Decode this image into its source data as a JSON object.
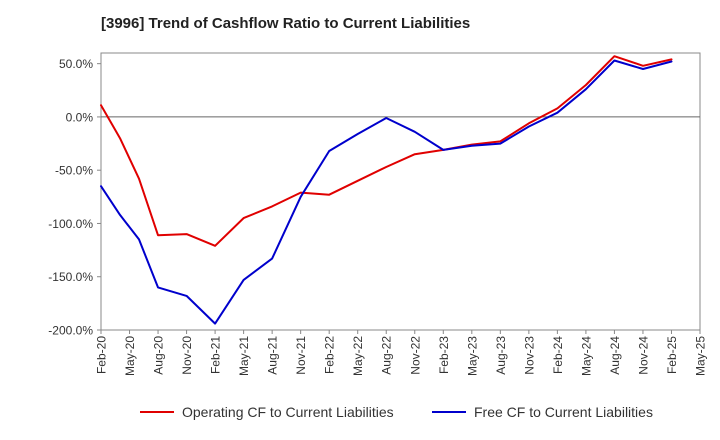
{
  "chart_data": {
    "type": "line",
    "title": "[3996]  Trend of Cashflow Ratio to Current Liabilities",
    "xlabel": "",
    "ylabel": "",
    "ylim": [
      -200,
      60
    ],
    "y_ticks": [
      50,
      0,
      -50,
      -100,
      -150,
      -200
    ],
    "y_tick_labels": [
      "50.0%",
      "0.0%",
      "-50.0%",
      "-100.0%",
      "-150.0%",
      "-200.0%"
    ],
    "x_tick_labels": [
      "Feb-20",
      "May-20",
      "Aug-20",
      "Nov-20",
      "Feb-21",
      "May-21",
      "Aug-21",
      "Nov-21",
      "Feb-22",
      "May-22",
      "Aug-22",
      "Nov-22",
      "Feb-23",
      "May-23",
      "Aug-23",
      "Nov-23",
      "Feb-24",
      "May-24",
      "Aug-24",
      "Nov-24",
      "Feb-25",
      "May-25"
    ],
    "x": [
      "Feb-20",
      "Apr-20",
      "Jun-20",
      "Aug-20",
      "Nov-20",
      "Feb-21",
      "May-21",
      "Aug-21",
      "Nov-21",
      "Feb-22",
      "May-22",
      "Aug-22",
      "Nov-22",
      "Feb-23",
      "May-23",
      "Aug-23",
      "Nov-23",
      "Feb-24",
      "May-24",
      "Aug-24",
      "Nov-24",
      "Feb-25"
    ],
    "series": [
      {
        "name": "Operating CF to Current Liabilities",
        "color": "#e00000",
        "values": [
          11,
          -20,
          -58,
          -111,
          -110,
          -121,
          -95,
          -84,
          -71,
          -73,
          -60,
          -47,
          -35,
          -31,
          -26,
          -23,
          -6,
          8,
          30,
          57,
          48,
          54
        ]
      },
      {
        "name": "Free CF to Current Liabilities",
        "color": "#0000cc",
        "values": [
          -65,
          -92,
          -115,
          -160,
          -168,
          -194,
          -153,
          -133,
          -75,
          -32,
          -16,
          -1,
          -14,
          -31,
          -27,
          -25,
          -9,
          4,
          26,
          53,
          45,
          52
        ]
      }
    ],
    "grid": true,
    "legend_position": "bottom"
  }
}
